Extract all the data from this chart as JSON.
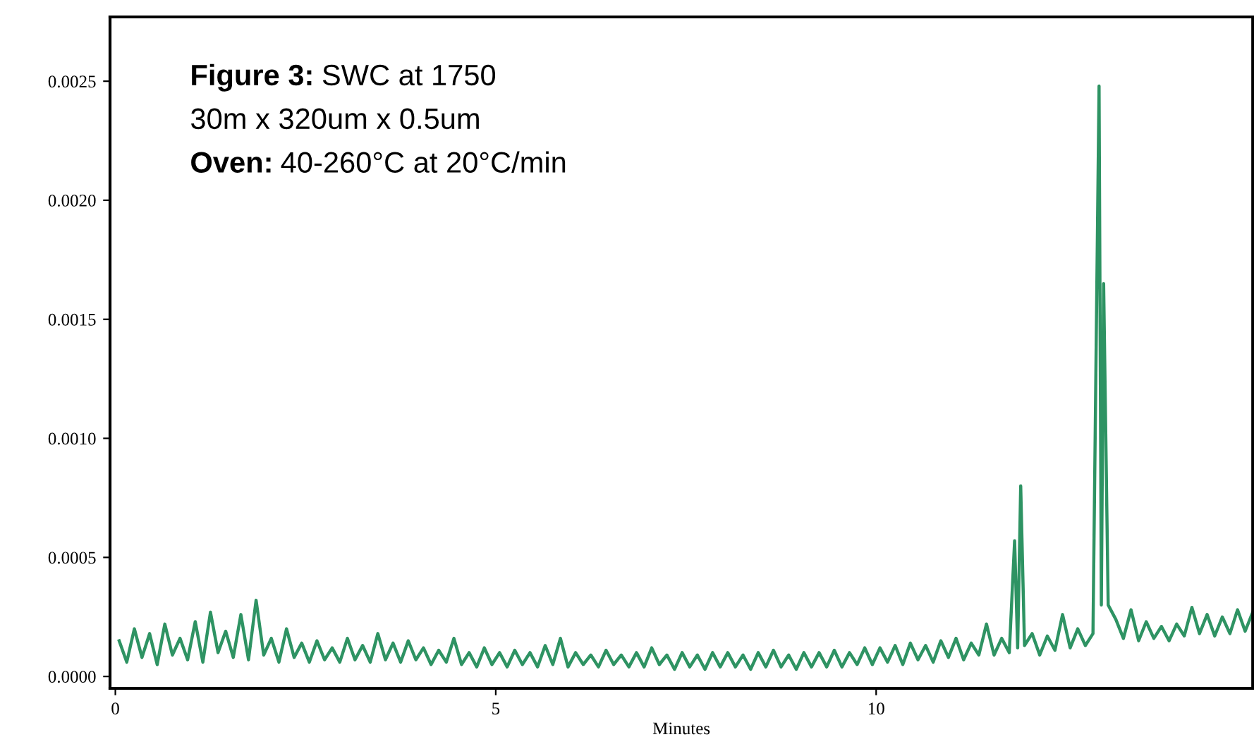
{
  "chart_data": {
    "type": "line",
    "xlabel": "Minutes",
    "annotations": [
      "Figure 3: SWC at 1750",
      "30m x 320um x 0.5um",
      "Oven: 40-260°C at 20°C/min"
    ],
    "xlim": [
      -0.07,
      14.95
    ],
    "ylim": [
      -5e-05,
      0.00277
    ],
    "xticks": [
      0,
      5,
      10
    ],
    "yticks": [
      {
        "value": 0,
        "label": "0.0000"
      },
      {
        "value": 0.0005,
        "label": "0.0005"
      },
      {
        "value": 0.001,
        "label": "0.0010"
      },
      {
        "value": 0.0015,
        "label": "0.0015"
      },
      {
        "value": 0.002,
        "label": "0.0020"
      },
      {
        "value": 0.0025,
        "label": "0.0025"
      }
    ],
    "marker": "none",
    "line_style": "solid",
    "series": [
      {
        "color": "#2e9363",
        "x": [
          0.05,
          0.15,
          0.25,
          0.35,
          0.45,
          0.55,
          0.65,
          0.75,
          0.85,
          0.95,
          1.05,
          1.15,
          1.25,
          1.35,
          1.45,
          1.55,
          1.65,
          1.75,
          1.85,
          1.95,
          2.05,
          2.15,
          2.25,
          2.35,
          2.45,
          2.55,
          2.65,
          2.75,
          2.85,
          2.95,
          3.05,
          3.15,
          3.25,
          3.35,
          3.45,
          3.55,
          3.65,
          3.75,
          3.85,
          3.95,
          4.05,
          4.15,
          4.25,
          4.35,
          4.45,
          4.55,
          4.65,
          4.75,
          4.85,
          4.95,
          5.05,
          5.15,
          5.25,
          5.35,
          5.45,
          5.55,
          5.65,
          5.75,
          5.85,
          5.95,
          6.05,
          6.15,
          6.25,
          6.35,
          6.45,
          6.55,
          6.65,
          6.75,
          6.85,
          6.95,
          7.05,
          7.15,
          7.25,
          7.35,
          7.45,
          7.55,
          7.65,
          7.75,
          7.85,
          7.95,
          8.05,
          8.15,
          8.25,
          8.35,
          8.45,
          8.55,
          8.65,
          8.75,
          8.85,
          8.95,
          9.05,
          9.15,
          9.25,
          9.35,
          9.45,
          9.55,
          9.65,
          9.75,
          9.85,
          9.95,
          10.05,
          10.15,
          10.25,
          10.35,
          10.45,
          10.55,
          10.65,
          10.75,
          10.85,
          10.95,
          11.05,
          11.15,
          11.25,
          11.35,
          11.45,
          11.55,
          11.65,
          11.75,
          11.82,
          11.86,
          11.9,
          11.95,
          12.05,
          12.15,
          12.25,
          12.35,
          12.45,
          12.55,
          12.65,
          12.75,
          12.85,
          12.93,
          12.96,
          12.99,
          13.05,
          13.15,
          13.25,
          13.35,
          13.45,
          13.55,
          13.65,
          13.75,
          13.85,
          13.95,
          14.05,
          14.15,
          14.25,
          14.35,
          14.45,
          14.55,
          14.65,
          14.75,
          14.85,
          14.95
        ],
        "values": [
          0.00015,
          6e-05,
          0.0002,
          8e-05,
          0.00018,
          5e-05,
          0.00022,
          9e-05,
          0.00016,
          7e-05,
          0.00023,
          6e-05,
          0.00027,
          0.0001,
          0.00019,
          8e-05,
          0.00026,
          7e-05,
          0.00032,
          9e-05,
          0.00016,
          6e-05,
          0.0002,
          8e-05,
          0.00014,
          6e-05,
          0.00015,
          7e-05,
          0.00012,
          6e-05,
          0.00016,
          7e-05,
          0.00013,
          6e-05,
          0.00018,
          7e-05,
          0.00014,
          6e-05,
          0.00015,
          7e-05,
          0.00012,
          5e-05,
          0.00011,
          6e-05,
          0.00016,
          5e-05,
          0.0001,
          4e-05,
          0.00012,
          5e-05,
          0.0001,
          4e-05,
          0.00011,
          5e-05,
          0.0001,
          4e-05,
          0.00013,
          5e-05,
          0.00016,
          4e-05,
          0.0001,
          5e-05,
          9e-05,
          4e-05,
          0.00011,
          5e-05,
          9e-05,
          4e-05,
          0.0001,
          4e-05,
          0.00012,
          5e-05,
          9e-05,
          3e-05,
          0.0001,
          4e-05,
          9e-05,
          3e-05,
          0.0001,
          4e-05,
          0.0001,
          4e-05,
          9e-05,
          3e-05,
          0.0001,
          4e-05,
          0.00011,
          4e-05,
          9e-05,
          3e-05,
          0.0001,
          4e-05,
          0.0001,
          4e-05,
          0.00011,
          4e-05,
          0.0001,
          5e-05,
          0.00012,
          5e-05,
          0.00012,
          6e-05,
          0.00013,
          5e-05,
          0.00014,
          7e-05,
          0.00013,
          6e-05,
          0.00015,
          8e-05,
          0.00016,
          7e-05,
          0.00014,
          9e-05,
          0.00022,
          9e-05,
          0.00016,
          0.0001,
          0.00057,
          0.00012,
          0.0008,
          0.00013,
          0.00018,
          9e-05,
          0.00017,
          0.00011,
          0.00026,
          0.00012,
          0.0002,
          0.00013,
          0.00018,
          0.00248,
          0.0003,
          0.00165,
          0.0003,
          0.00024,
          0.00016,
          0.00028,
          0.00015,
          0.00023,
          0.00016,
          0.00021,
          0.00015,
          0.00022,
          0.00017,
          0.00029,
          0.00018,
          0.00026,
          0.00017,
          0.00025,
          0.00018,
          0.00028,
          0.00019,
          0.00027
        ]
      }
    ]
  }
}
